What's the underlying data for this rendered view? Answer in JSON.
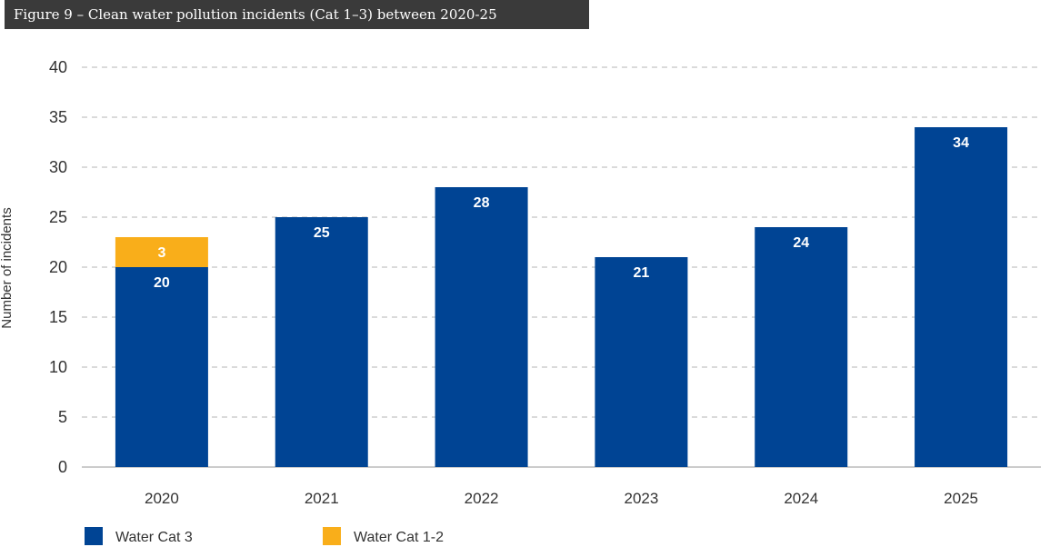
{
  "figure_title": "Figure 9 – Clean water pollution incidents (Cat 1–3) between 2020-25",
  "chart_data": {
    "type": "bar",
    "stacked": true,
    "categories": [
      "2020",
      "2021",
      "2022",
      "2023",
      "2024",
      "2025"
    ],
    "series": [
      {
        "name": "Water Cat 3",
        "color": "#004494",
        "values": [
          20,
          25,
          28,
          21,
          24,
          34
        ]
      },
      {
        "name": "Water Cat 1-2",
        "color": "#f9ae1a",
        "values": [
          3,
          0,
          0,
          0,
          0,
          0
        ]
      }
    ],
    "data_labels": {
      "Water Cat 3": [
        "20",
        "25",
        "28",
        "21",
        "24",
        "34"
      ],
      "Water Cat 1-2": [
        "3",
        "",
        "",
        "",
        "",
        ""
      ]
    },
    "ylabel": "Number of incidents",
    "ylim": [
      0,
      40
    ],
    "yticks": [
      0,
      5,
      10,
      15,
      20,
      25,
      30,
      35,
      40
    ],
    "grid": true,
    "legend_position": "bottom-left"
  }
}
